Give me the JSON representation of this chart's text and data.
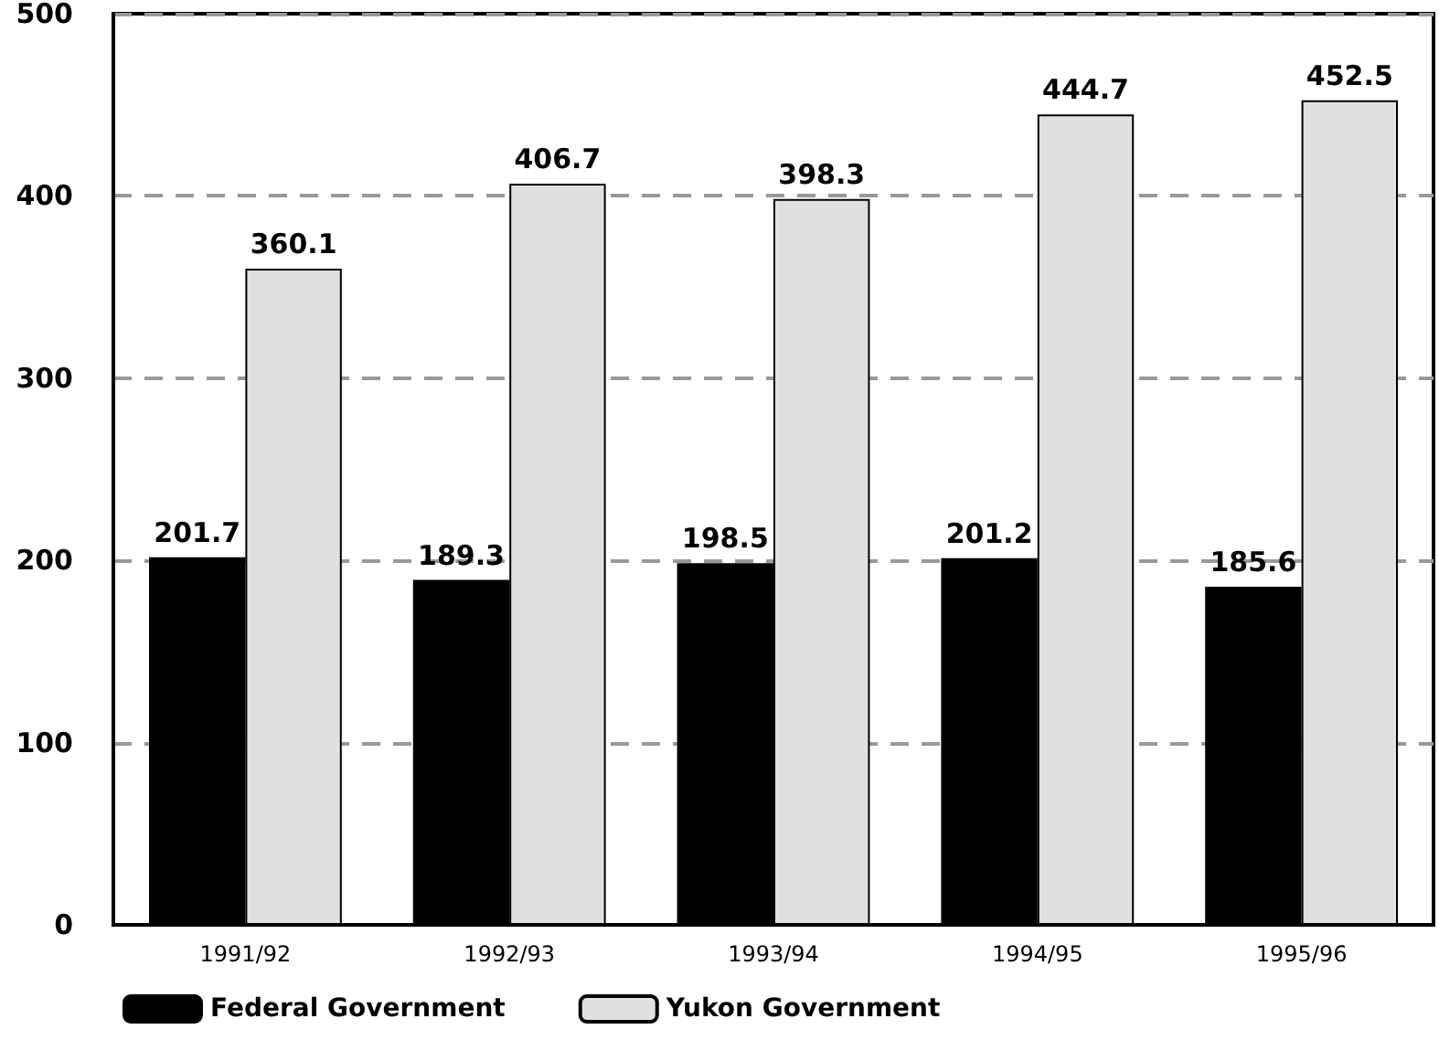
{
  "chart_data": {
    "type": "bar",
    "categories": [
      "1991/92",
      "1992/93",
      "1993/94",
      "1994/95",
      "1995/96"
    ],
    "series": [
      {
        "name": "Federal Government",
        "color": "#000000",
        "values": [
          201.7,
          189.3,
          198.5,
          201.2,
          185.6
        ]
      },
      {
        "name": "Yukon Government",
        "color": "#e0e0e0",
        "values": [
          360.1,
          406.7,
          398.3,
          444.7,
          452.5
        ]
      }
    ],
    "ylim": [
      0,
      500
    ],
    "yticks": [
      0,
      100,
      200,
      300,
      400,
      500
    ],
    "grid": "y",
    "legend": "bottom left",
    "data_labels": true
  }
}
